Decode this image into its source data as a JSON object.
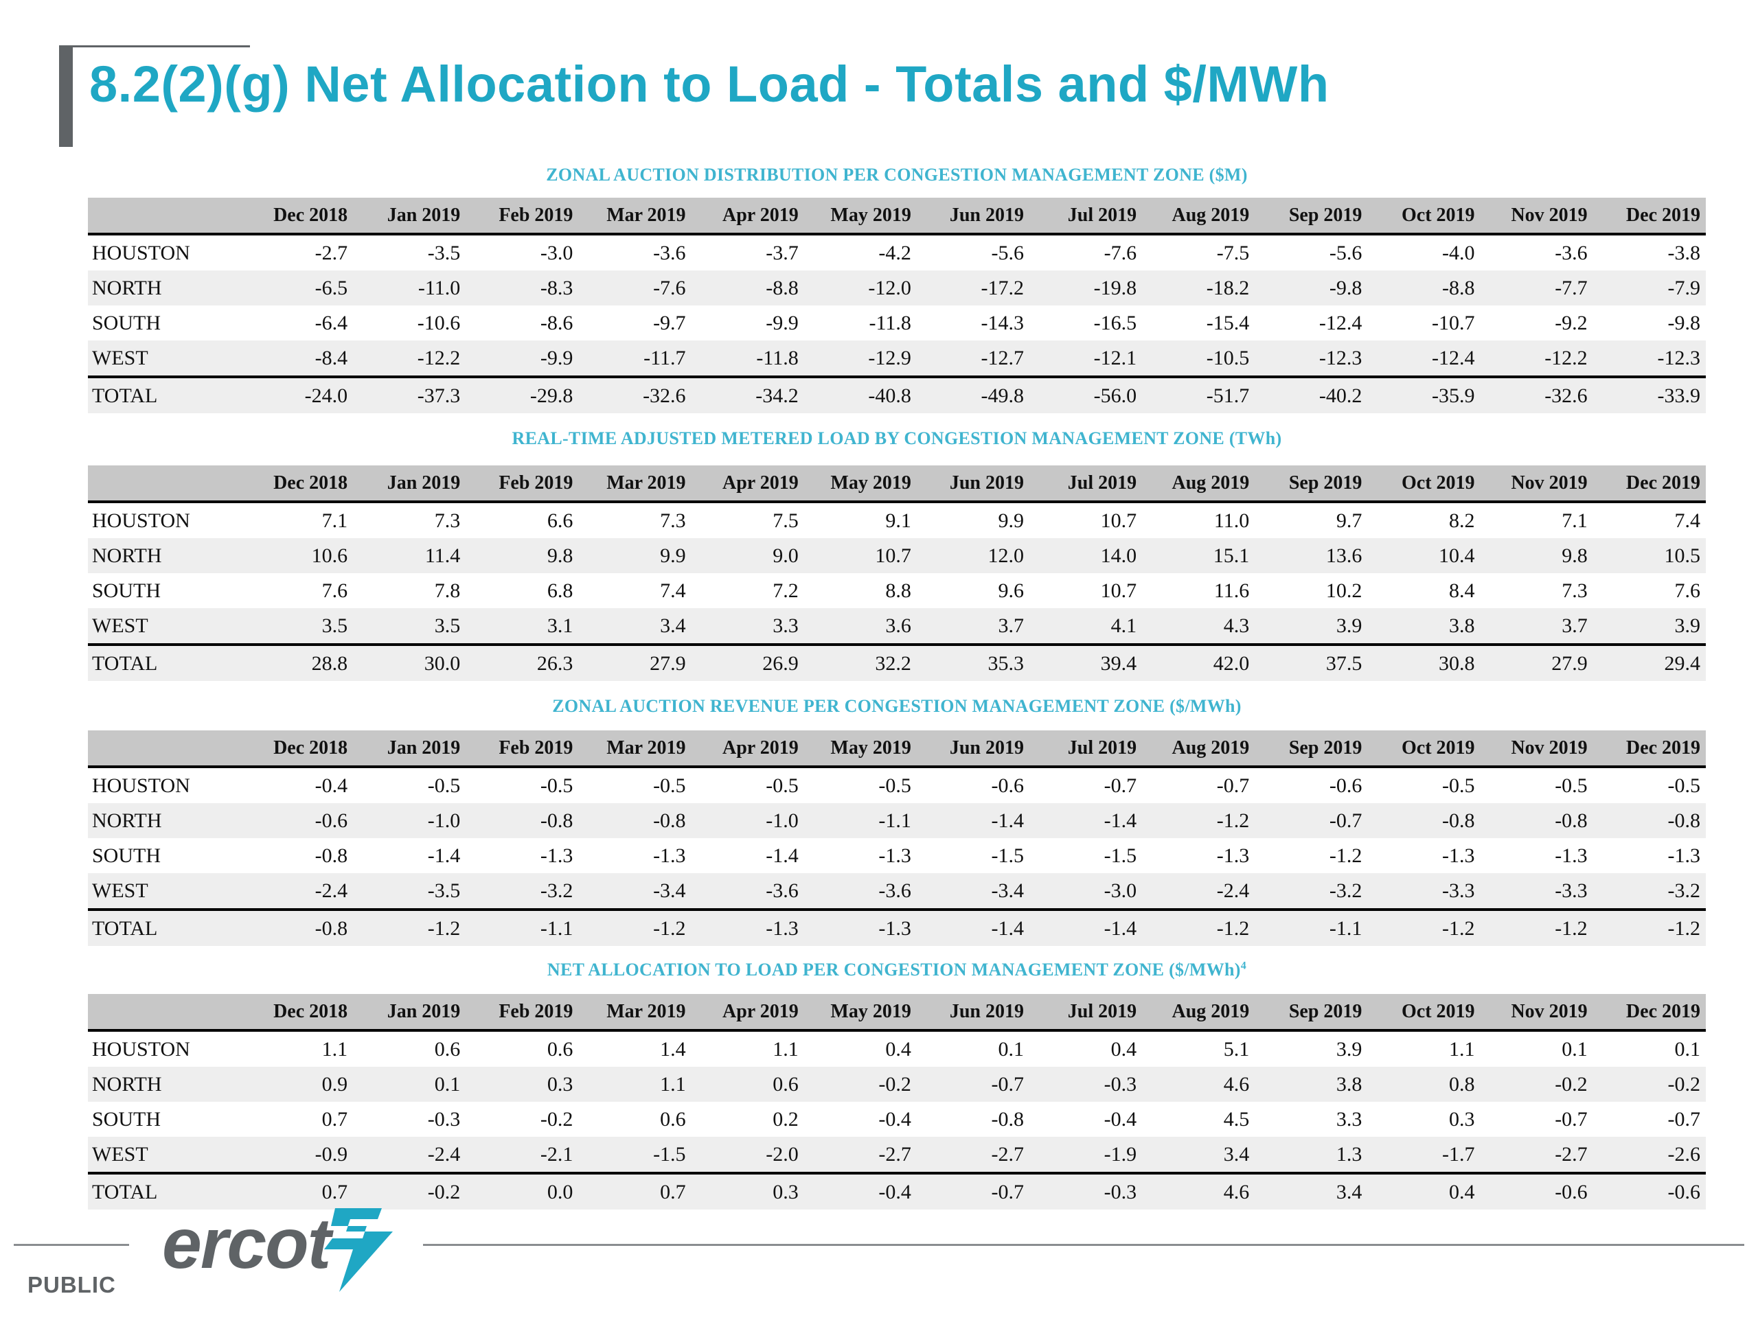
{
  "page_title": "8.2(2)(g) Net Allocation to Load - Totals and $/MWh",
  "months": [
    "Dec 2018",
    "Jan 2019",
    "Feb 2019",
    "Mar 2019",
    "Apr 2019",
    "May 2019",
    "Jun 2019",
    "Jul 2019",
    "Aug 2019",
    "Sep 2019",
    "Oct 2019",
    "Nov 2019",
    "Dec 2019"
  ],
  "colors": {
    "title": "#1fa7c4",
    "section_title": "#3fb4cf",
    "header_bg": "#c7c7c7",
    "stripe_bg": "#eeeeee",
    "brand_gray": "#5f6366"
  },
  "tables": [
    {
      "title": "ZONAL AUCTION DISTRIBUTION PER CONGESTION MANAGEMENT ZONE ($M)",
      "rows": [
        {
          "label": "HOUSTON",
          "values": [
            "-2.7",
            "-3.5",
            "-3.0",
            "-3.6",
            "-3.7",
            "-4.2",
            "-5.6",
            "-7.6",
            "-7.5",
            "-5.6",
            "-4.0",
            "-3.6",
            "-3.8"
          ]
        },
        {
          "label": "NORTH",
          "values": [
            "-6.5",
            "-11.0",
            "-8.3",
            "-7.6",
            "-8.8",
            "-12.0",
            "-17.2",
            "-19.8",
            "-18.2",
            "-9.8",
            "-8.8",
            "-7.7",
            "-7.9"
          ]
        },
        {
          "label": "SOUTH",
          "values": [
            "-6.4",
            "-10.6",
            "-8.6",
            "-9.7",
            "-9.9",
            "-11.8",
            "-14.3",
            "-16.5",
            "-15.4",
            "-12.4",
            "-10.7",
            "-9.2",
            "-9.8"
          ]
        },
        {
          "label": "WEST",
          "values": [
            "-8.4",
            "-12.2",
            "-9.9",
            "-11.7",
            "-11.8",
            "-12.9",
            "-12.7",
            "-12.1",
            "-10.5",
            "-12.3",
            "-12.4",
            "-12.2",
            "-12.3"
          ]
        },
        {
          "label": "TOTAL",
          "values": [
            "-24.0",
            "-37.3",
            "-29.8",
            "-32.6",
            "-34.2",
            "-40.8",
            "-49.8",
            "-56.0",
            "-51.7",
            "-40.2",
            "-35.9",
            "-32.6",
            "-33.9"
          ]
        }
      ]
    },
    {
      "title": "REAL-TIME ADJUSTED METERED LOAD BY CONGESTION MANAGEMENT ZONE (TWh)",
      "rows": [
        {
          "label": "HOUSTON",
          "values": [
            "7.1",
            "7.3",
            "6.6",
            "7.3",
            "7.5",
            "9.1",
            "9.9",
            "10.7",
            "11.0",
            "9.7",
            "8.2",
            "7.1",
            "7.4"
          ]
        },
        {
          "label": "NORTH",
          "values": [
            "10.6",
            "11.4",
            "9.8",
            "9.9",
            "9.0",
            "10.7",
            "12.0",
            "14.0",
            "15.1",
            "13.6",
            "10.4",
            "9.8",
            "10.5"
          ]
        },
        {
          "label": "SOUTH",
          "values": [
            "7.6",
            "7.8",
            "6.8",
            "7.4",
            "7.2",
            "8.8",
            "9.6",
            "10.7",
            "11.6",
            "10.2",
            "8.4",
            "7.3",
            "7.6"
          ]
        },
        {
          "label": "WEST",
          "values": [
            "3.5",
            "3.5",
            "3.1",
            "3.4",
            "3.3",
            "3.6",
            "3.7",
            "4.1",
            "4.3",
            "3.9",
            "3.8",
            "3.7",
            "3.9"
          ]
        },
        {
          "label": "TOTAL",
          "values": [
            "28.8",
            "30.0",
            "26.3",
            "27.9",
            "26.9",
            "32.2",
            "35.3",
            "39.4",
            "42.0",
            "37.5",
            "30.8",
            "27.9",
            "29.4"
          ]
        }
      ]
    },
    {
      "title": "ZONAL AUCTION REVENUE PER CONGESTION MANAGEMENT ZONE ($/MWh)",
      "rows": [
        {
          "label": "HOUSTON",
          "values": [
            "-0.4",
            "-0.5",
            "-0.5",
            "-0.5",
            "-0.5",
            "-0.5",
            "-0.6",
            "-0.7",
            "-0.7",
            "-0.6",
            "-0.5",
            "-0.5",
            "-0.5"
          ]
        },
        {
          "label": "NORTH",
          "values": [
            "-0.6",
            "-1.0",
            "-0.8",
            "-0.8",
            "-1.0",
            "-1.1",
            "-1.4",
            "-1.4",
            "-1.2",
            "-0.7",
            "-0.8",
            "-0.8",
            "-0.8"
          ]
        },
        {
          "label": "SOUTH",
          "values": [
            "-0.8",
            "-1.4",
            "-1.3",
            "-1.3",
            "-1.4",
            "-1.3",
            "-1.5",
            "-1.5",
            "-1.3",
            "-1.2",
            "-1.3",
            "-1.3",
            "-1.3"
          ]
        },
        {
          "label": "WEST",
          "values": [
            "-2.4",
            "-3.5",
            "-3.2",
            "-3.4",
            "-3.6",
            "-3.6",
            "-3.4",
            "-3.0",
            "-2.4",
            "-3.2",
            "-3.3",
            "-3.3",
            "-3.2"
          ]
        },
        {
          "label": "TOTAL",
          "values": [
            "-0.8",
            "-1.2",
            "-1.1",
            "-1.2",
            "-1.3",
            "-1.3",
            "-1.4",
            "-1.4",
            "-1.2",
            "-1.1",
            "-1.2",
            "-1.2",
            "-1.2"
          ]
        }
      ]
    },
    {
      "title": "NET ALLOCATION TO LOAD PER CONGESTION MANAGEMENT ZONE ($/MWh)",
      "title_footnote": "4",
      "rows": [
        {
          "label": "HOUSTON",
          "values": [
            "1.1",
            "0.6",
            "0.6",
            "1.4",
            "1.1",
            "0.4",
            "0.1",
            "0.4",
            "5.1",
            "3.9",
            "1.1",
            "0.1",
            "0.1"
          ]
        },
        {
          "label": "NORTH",
          "values": [
            "0.9",
            "0.1",
            "0.3",
            "1.1",
            "0.6",
            "-0.2",
            "-0.7",
            "-0.3",
            "4.6",
            "3.8",
            "0.8",
            "-0.2",
            "-0.2"
          ]
        },
        {
          "label": "SOUTH",
          "values": [
            "0.7",
            "-0.3",
            "-0.2",
            "0.6",
            "0.2",
            "-0.4",
            "-0.8",
            "-0.4",
            "4.5",
            "3.3",
            "0.3",
            "-0.7",
            "-0.7"
          ]
        },
        {
          "label": "WEST",
          "values": [
            "-0.9",
            "-2.4",
            "-2.1",
            "-1.5",
            "-2.0",
            "-2.7",
            "-2.7",
            "-1.9",
            "3.4",
            "1.3",
            "-1.7",
            "-2.7",
            "-2.6"
          ]
        },
        {
          "label": "TOTAL",
          "values": [
            "0.7",
            "-0.2",
            "0.0",
            "0.7",
            "0.3",
            "-0.4",
            "-0.7",
            "-0.3",
            "4.6",
            "3.4",
            "0.4",
            "-0.6",
            "-0.6"
          ]
        }
      ]
    }
  ],
  "footer": {
    "classification": "PUBLIC",
    "logo_text": "ercot",
    "logo_icon": "ercot-bolt-icon"
  }
}
